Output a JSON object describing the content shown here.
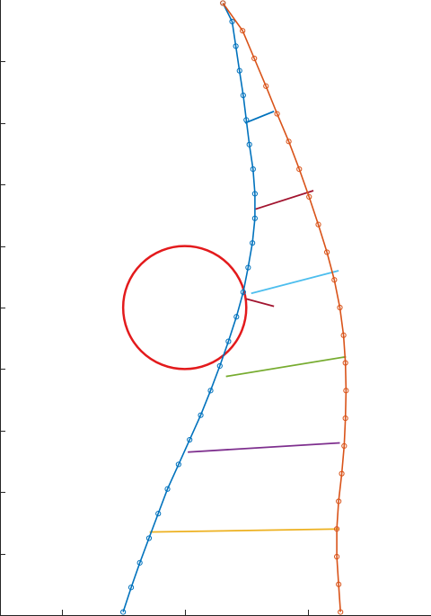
{
  "chart_data": {
    "type": "line",
    "title": "",
    "xlabel": "",
    "ylabel": "",
    "xlim": [
      0,
      7
    ],
    "ylim": [
      0,
      10
    ],
    "grid": false,
    "legend": "none",
    "xticks": [
      1,
      3,
      5
    ],
    "yticks": [
      1,
      2,
      3,
      4,
      5,
      6,
      7,
      8,
      9
    ],
    "xtick_labels_visible": false,
    "ytick_labels_visible": false,
    "series": [
      {
        "role": "left-boundary",
        "color": "#0072BD",
        "marker": "circle",
        "points": [
          [
            2.0,
            0.05
          ],
          [
            2.13,
            0.45
          ],
          [
            2.27,
            0.85
          ],
          [
            2.42,
            1.25
          ],
          [
            2.57,
            1.65
          ],
          [
            2.72,
            2.05
          ],
          [
            2.9,
            2.45
          ],
          [
            3.08,
            2.85
          ],
          [
            3.26,
            3.25
          ],
          [
            3.42,
            3.65
          ],
          [
            3.57,
            4.05
          ],
          [
            3.71,
            4.45
          ],
          [
            3.84,
            4.85
          ],
          [
            3.95,
            5.25
          ],
          [
            4.03,
            5.65
          ],
          [
            4.1,
            6.05
          ],
          [
            4.14,
            6.45
          ],
          [
            4.14,
            6.85
          ],
          [
            4.11,
            7.25
          ],
          [
            4.05,
            7.65
          ],
          [
            4.0,
            8.05
          ],
          [
            3.95,
            8.45
          ],
          [
            3.89,
            8.85
          ],
          [
            3.83,
            9.25
          ],
          [
            3.77,
            9.65
          ],
          [
            3.62,
            9.95
          ]
        ]
      },
      {
        "role": "right-boundary",
        "color": "#D95319",
        "marker": "circle",
        "points": [
          [
            5.53,
            0.05
          ],
          [
            5.5,
            0.5
          ],
          [
            5.47,
            0.95
          ],
          [
            5.47,
            1.4
          ],
          [
            5.5,
            1.85
          ],
          [
            5.55,
            2.3
          ],
          [
            5.59,
            2.75
          ],
          [
            5.61,
            3.2
          ],
          [
            5.62,
            3.65
          ],
          [
            5.61,
            4.1
          ],
          [
            5.58,
            4.55
          ],
          [
            5.52,
            5.0
          ],
          [
            5.43,
            5.45
          ],
          [
            5.31,
            5.9
          ],
          [
            5.17,
            6.35
          ],
          [
            5.02,
            6.8
          ],
          [
            4.86,
            7.25
          ],
          [
            4.69,
            7.7
          ],
          [
            4.5,
            8.15
          ],
          [
            4.32,
            8.6
          ],
          [
            4.13,
            9.05
          ],
          [
            3.94,
            9.5
          ],
          [
            3.62,
            9.95
          ]
        ]
      }
    ],
    "connectors": [
      {
        "color": "#EDB120",
        "from": [
          2.43,
          1.35
        ],
        "to": [
          5.5,
          1.4
        ]
      },
      {
        "color": "#7E2F8E",
        "from": [
          3.05,
          2.65
        ],
        "to": [
          5.52,
          2.8
        ]
      },
      {
        "color": "#77AC30",
        "from": [
          3.67,
          3.88
        ],
        "to": [
          5.62,
          4.2
        ]
      },
      {
        "color": "#A2142F",
        "from": [
          4.0,
          5.14
        ],
        "to": [
          4.45,
          5.02
        ]
      },
      {
        "color": "#4DBEEE",
        "from": [
          4.08,
          5.23
        ],
        "to": [
          5.5,
          5.6
        ]
      },
      {
        "color": "#A2142F",
        "from": [
          4.15,
          6.6
        ],
        "to": [
          5.09,
          6.9
        ]
      },
      {
        "color": "#0072BD",
        "from": [
          3.98,
          8.0
        ],
        "to": [
          4.45,
          8.19
        ]
      }
    ],
    "circle": {
      "color": "#E31A1C",
      "center": [
        3.0,
        5.0
      ],
      "radius": 1.0
    }
  }
}
